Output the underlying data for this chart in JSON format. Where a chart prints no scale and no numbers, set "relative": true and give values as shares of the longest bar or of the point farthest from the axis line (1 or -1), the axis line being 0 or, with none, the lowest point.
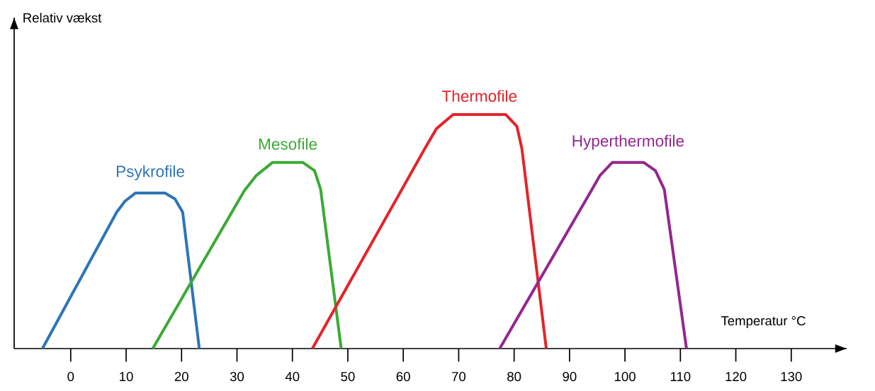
{
  "chart_data": {
    "type": "line",
    "relative": true,
    "xlabel": "Temperatur °C",
    "annotations": [
      "Relativ vækst"
    ],
    "xlim": [
      -10.2,
      140
    ],
    "xticks": [
      0,
      10,
      20,
      30,
      40,
      50,
      60,
      70,
      80,
      90,
      100,
      110,
      120,
      130
    ],
    "grid": false,
    "marker": "none",
    "line_style": "solid",
    "series": [
      {
        "name": "Psykrofile",
        "color": "#2e75b6",
        "x": [
          -5.1,
          8.3,
          9.8,
          11.7,
          17.0,
          18.8,
          20.2,
          23.2
        ],
        "values": [
          0,
          0.583,
          0.63,
          0.665,
          0.665,
          0.64,
          0.583,
          0
        ]
      },
      {
        "name": "Mesofile",
        "color": "#3aaa35",
        "x": [
          14.8,
          31.3,
          33.5,
          36.4,
          41.9,
          44.0,
          45.1,
          48.8
        ],
        "values": [
          0,
          0.674,
          0.74,
          0.795,
          0.795,
          0.76,
          0.68,
          0
        ]
      },
      {
        "name": "Thermofile",
        "color": "#e3242b",
        "x": [
          43.6,
          63.9,
          66.0,
          69.0,
          78.5,
          80.5,
          81.4,
          85.8
        ],
        "values": [
          0,
          0.855,
          0.94,
          1,
          1,
          0.95,
          0.855,
          0
        ]
      },
      {
        "name": "Hyperthermofile",
        "color": "#93278f",
        "x": [
          77.4,
          93.9,
          95.5,
          97.7,
          103.4,
          105.5,
          107.1,
          111.1
        ],
        "values": [
          0,
          0.674,
          0.74,
          0.795,
          0.795,
          0.76,
          0.68,
          0
        ]
      }
    ]
  }
}
